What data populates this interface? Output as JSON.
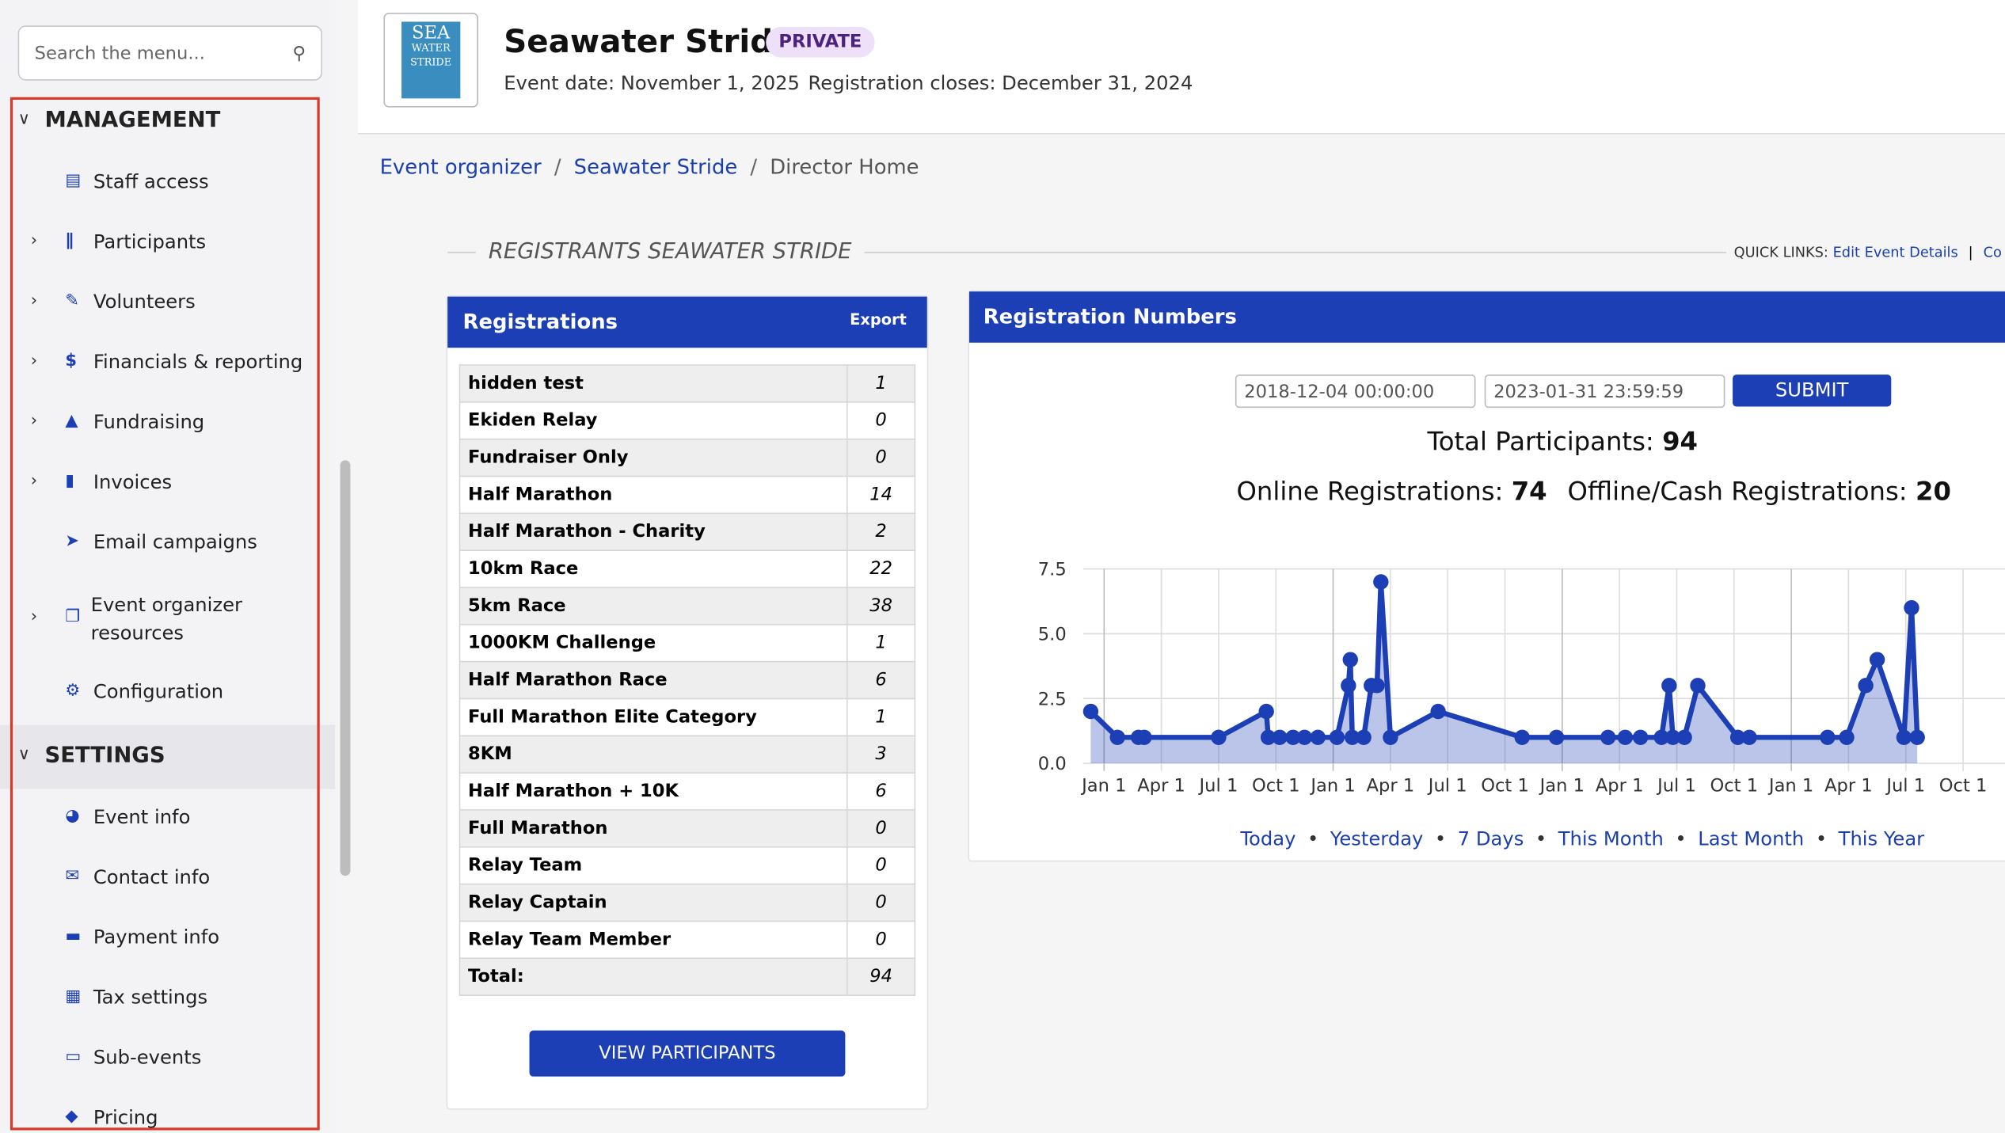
{
  "sidebar": {
    "search_placeholder": "Search the menu...",
    "sections": [
      {
        "title": "MANAGEMENT",
        "items": [
          "Staff access",
          "Participants",
          "Volunteers",
          "Financials & reporting",
          "Fundraising",
          "Invoices",
          "Email campaigns",
          "Event organizer resources",
          "Configuration"
        ]
      },
      {
        "title": "SETTINGS",
        "items": [
          "Event info",
          "Contact info",
          "Payment info",
          "Tax settings",
          "Sub-events",
          "Pricing"
        ]
      }
    ]
  },
  "header": {
    "logo_text": [
      "SEA",
      "WATER",
      "STRIDE"
    ],
    "title": "Seawater Stride",
    "badge": "PRIVATE",
    "event_date": "Event date: November 1, 2025",
    "registration_closes": "Registration closes: December 31, 2024"
  },
  "breadcrumb": [
    "Event organizer",
    "Seawater Stride",
    "Director Home"
  ],
  "section_title": "REGISTRANTS SEAWATER STRIDE",
  "quick_links": {
    "label": "QUICK LINKS:",
    "links": [
      "Edit Event Details",
      "Co"
    ]
  },
  "registrations": {
    "title": "Registrations",
    "export": "Export",
    "rows": [
      [
        "hidden test",
        1
      ],
      [
        "Ekiden Relay",
        0
      ],
      [
        "Fundraiser Only",
        0
      ],
      [
        "Half Marathon",
        14
      ],
      [
        "Half Marathon - Charity",
        2
      ],
      [
        "10km Race",
        22
      ],
      [
        "5km Race",
        38
      ],
      [
        "1000KM Challenge",
        1
      ],
      [
        "Half Marathon Race",
        6
      ],
      [
        "Full Marathon Elite Category",
        1
      ],
      [
        "8KM",
        3
      ],
      [
        "Half Marathon + 10K",
        6
      ],
      [
        "Full Marathon",
        0
      ],
      [
        "Relay Team",
        0
      ],
      [
        "Relay Captain",
        0
      ],
      [
        "Relay Team Member",
        0
      ],
      [
        "Total:",
        94
      ]
    ],
    "button": "VIEW PARTICIPANTS"
  },
  "numbers": {
    "title": "Registration Numbers",
    "start": "2018-12-04 00:00:00",
    "end": "2023-01-31 23:59:59",
    "submit": "SUBMIT",
    "total_label": "Total Participants:",
    "total": 94,
    "online_label": "Online Registrations:",
    "online": 74,
    "offline_label": "Offline/Cash Registrations:",
    "offline": 20,
    "ranges": [
      "Today",
      "Yesterday",
      "7 Days",
      "This Month",
      "Last Month",
      "This Year"
    ]
  },
  "chart_data": {
    "type": "line",
    "color": "#1c3fb5",
    "grid": true,
    "x": [
      -0.7,
      0.7,
      1.8,
      2.1,
      6.0,
      8.5,
      8.6,
      9.2,
      9.9,
      10.5,
      11.2,
      12.2,
      12.8,
      12.9,
      13.0,
      13.6,
      14.0,
      14.3,
      14.5,
      15.0,
      17.5,
      21.9,
      23.7,
      26.4,
      27.3,
      28.1,
      29.2,
      29.6,
      29.8,
      30.4,
      31.1,
      33.2,
      33.8,
      37.9,
      38.9,
      39.9,
      40.5,
      41.9,
      42.3,
      42.6
    ],
    "values": [
      2,
      1,
      1,
      1,
      1,
      2,
      1,
      1,
      1,
      1,
      1,
      1,
      3,
      4,
      1,
      1,
      3,
      3,
      7,
      1,
      2,
      1,
      1,
      1,
      1,
      1,
      1,
      3,
      1,
      1,
      3,
      1,
      1,
      1,
      1,
      3,
      4,
      1,
      6,
      1
    ],
    "xlim": [
      -0.7,
      48
    ],
    "xticks": [
      {
        "value": 0,
        "label": "Jan 1"
      },
      {
        "value": 3,
        "label": "Apr 1"
      },
      {
        "value": 6,
        "label": "Jul 1"
      },
      {
        "value": 9,
        "label": "Oct 1"
      },
      {
        "value": 12,
        "label": "Jan 1"
      },
      {
        "value": 15,
        "label": "Apr 1"
      },
      {
        "value": 18,
        "label": "Jul 1"
      },
      {
        "value": 21,
        "label": "Oct 1"
      },
      {
        "value": 24,
        "label": "Jan 1"
      },
      {
        "value": 27,
        "label": "Apr 1"
      },
      {
        "value": 30,
        "label": "Jul 1"
      },
      {
        "value": 33,
        "label": "Oct 1"
      },
      {
        "value": 36,
        "label": "Jan 1"
      },
      {
        "value": 39,
        "label": "Apr 1"
      },
      {
        "value": 42,
        "label": "Jul 1"
      },
      {
        "value": 45,
        "label": "Oct 1"
      }
    ],
    "ylim": [
      0,
      7.5
    ],
    "yticks": [
      {
        "value": 0,
        "label": "0.0"
      },
      2.5,
      {
        "value": 5,
        "label": "5.0"
      },
      7.5
    ]
  }
}
